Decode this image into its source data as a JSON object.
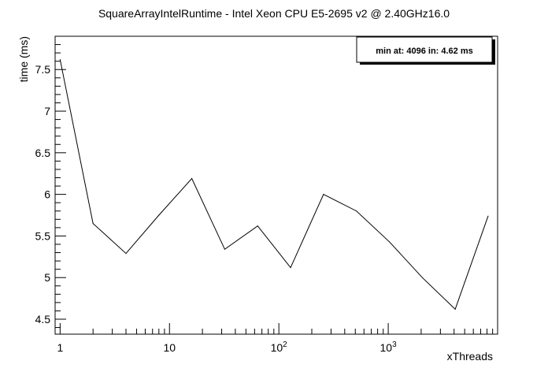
{
  "chart_data": {
    "type": "line",
    "title": "SquareArrayIntelRuntime - Intel Xeon CPU E5-2695 v2 @ 2.40GHz16.0",
    "xlabel": "xThreads",
    "ylabel": "time (ms)",
    "x_scale": "log",
    "xlim": [
      0.9,
      10000
    ],
    "ylim": [
      4.32,
      7.9
    ],
    "x_tick_labels": [
      {
        "value": 1,
        "base": "1",
        "exp": ""
      },
      {
        "value": 10,
        "base": "10",
        "exp": ""
      },
      {
        "value": 100,
        "base": "10",
        "exp": "2"
      },
      {
        "value": 1000,
        "base": "10",
        "exp": "3"
      }
    ],
    "y_ticks": [
      4.5,
      5,
      5.5,
      6,
      6.5,
      7,
      7.5
    ],
    "y_tick_labels": [
      "4.5",
      "5",
      "5.5",
      "6",
      "6.5",
      "7",
      "7.5"
    ],
    "legend_placement": "top-right",
    "legend_text": "min at: 4096 in: 4.62 ms",
    "series": [
      {
        "x": [
          1,
          2,
          4,
          8,
          16,
          32,
          64,
          128,
          256,
          512,
          1024,
          2048,
          4096,
          8192
        ],
        "y": [
          7.62,
          5.65,
          5.29,
          5.75,
          6.19,
          5.34,
          5.62,
          5.12,
          6.0,
          5.8,
          5.43,
          5.0,
          4.62,
          5.74
        ]
      }
    ]
  }
}
